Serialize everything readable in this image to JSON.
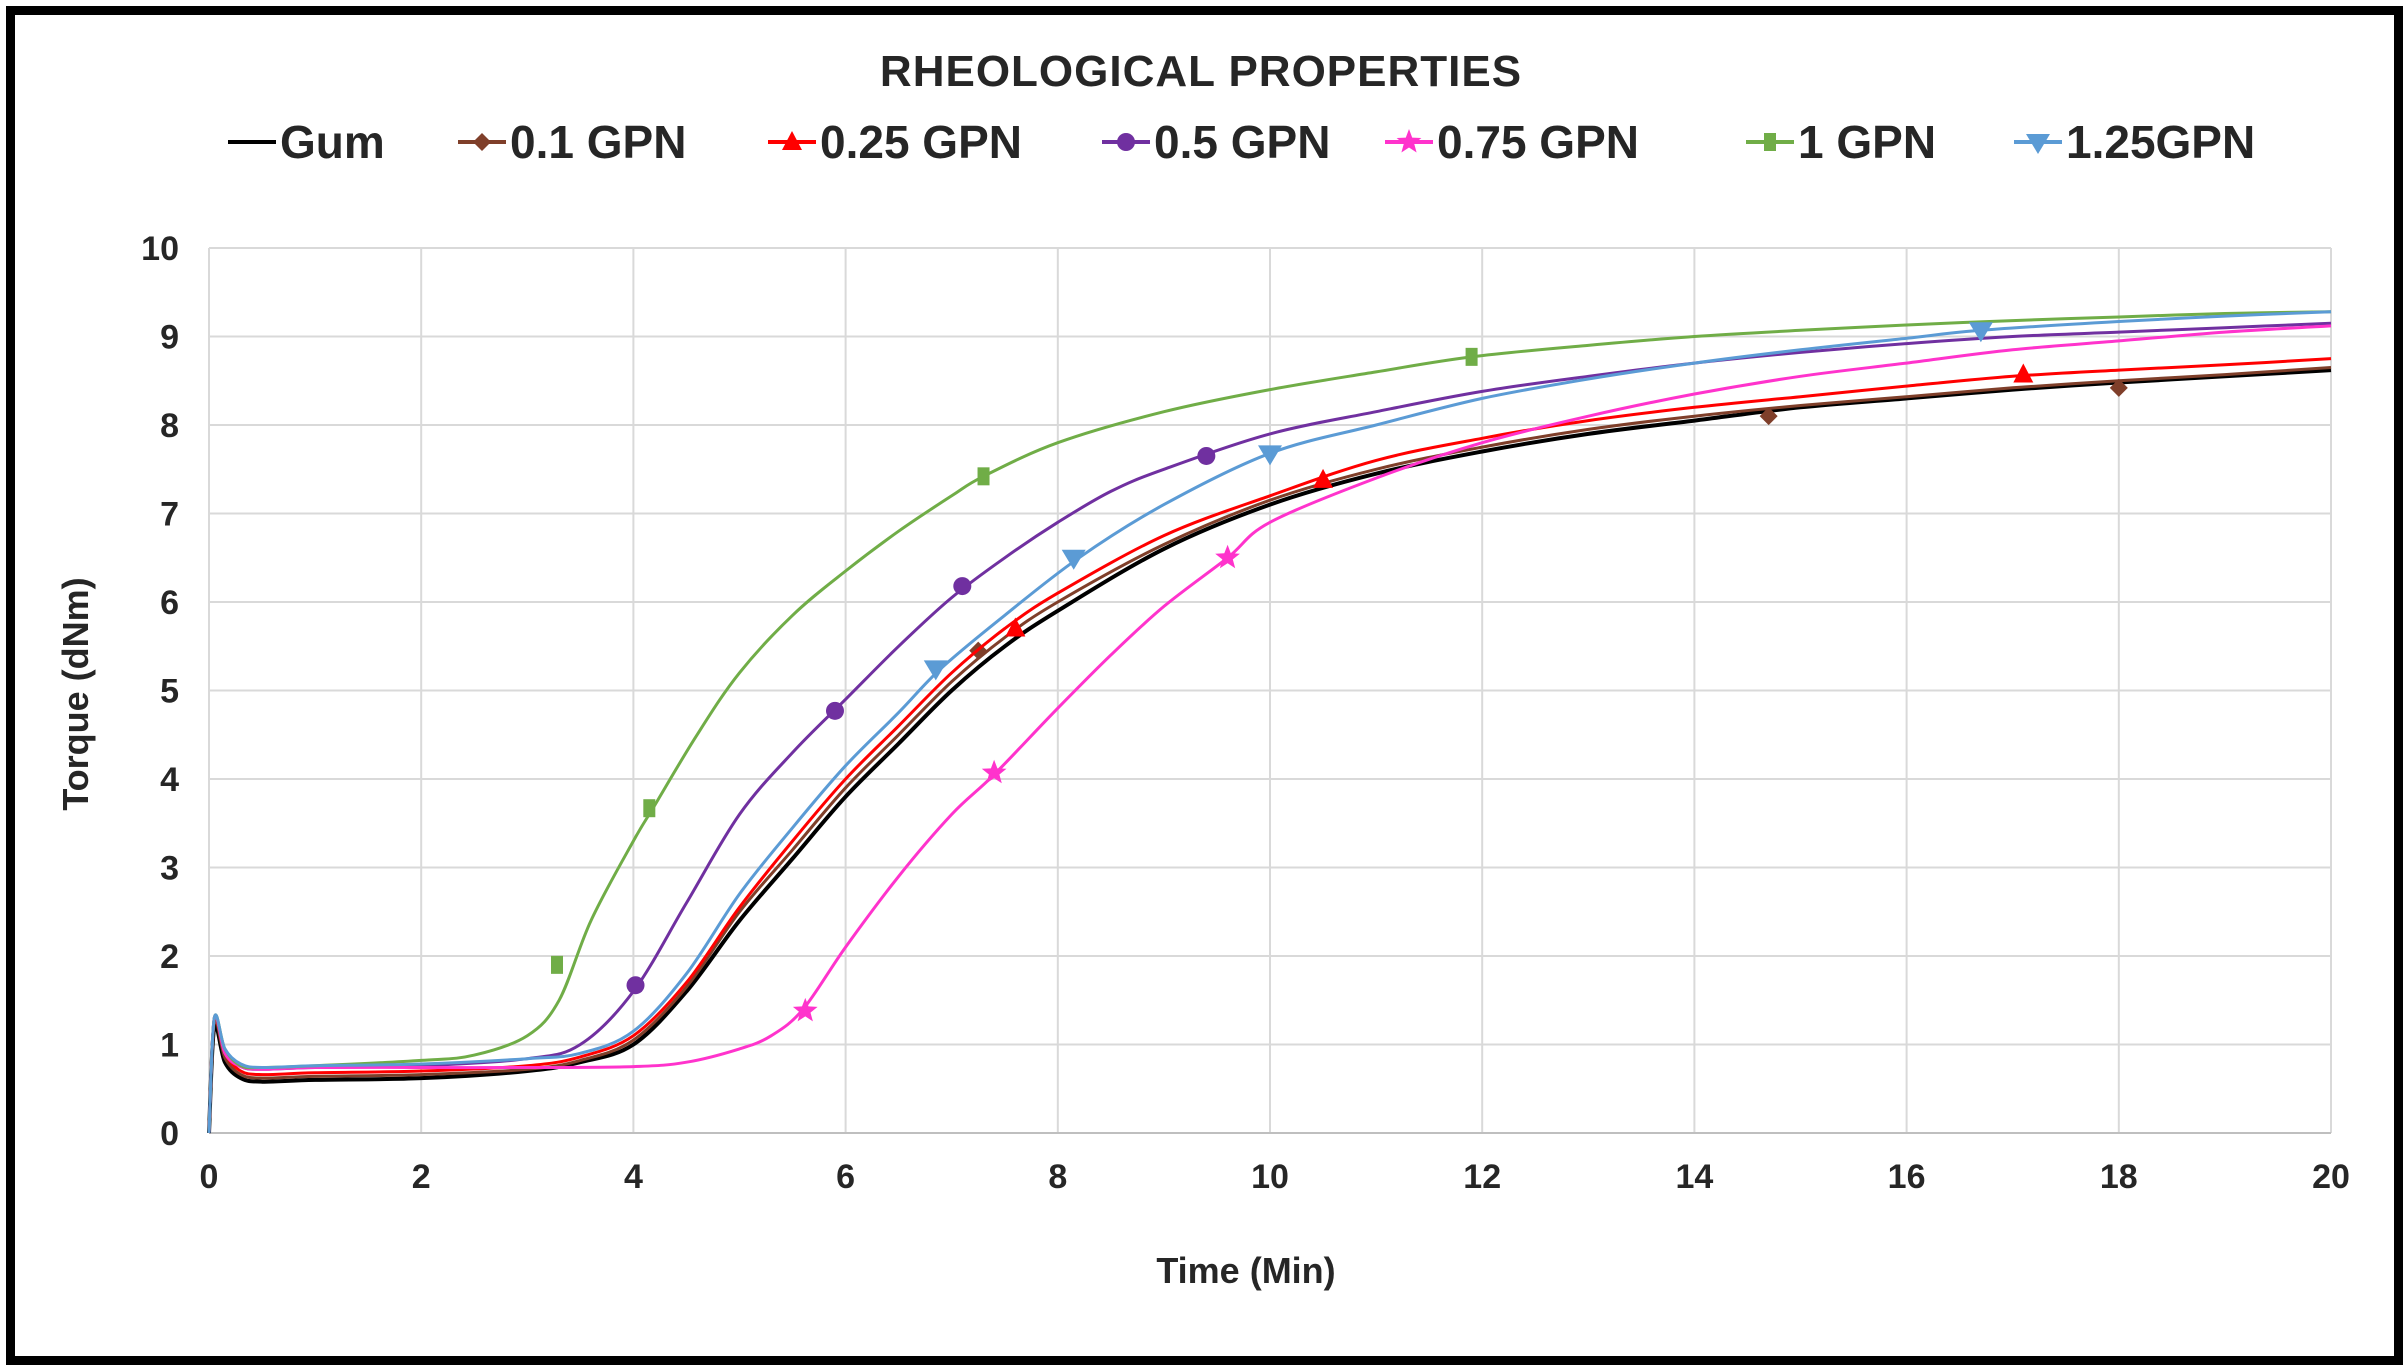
{
  "chart_data": {
    "type": "line",
    "title": "RHEOLOGICAL PROPERTIES",
    "xlabel": "Time (Min)",
    "ylabel": "Torque (dNm)",
    "xlim": [
      0,
      20
    ],
    "ylim": [
      0,
      10
    ],
    "x_ticks": [
      "0",
      "2",
      "4",
      "6",
      "8",
      "10",
      "12",
      "14",
      "16",
      "18",
      "20"
    ],
    "y_ticks": [
      "0",
      "1",
      "2",
      "3",
      "4",
      "5",
      "6",
      "7",
      "8",
      "9",
      "10"
    ],
    "grid": true,
    "legend_position": "top",
    "series": [
      {
        "name": "Gum",
        "color": "#000000",
        "marker": "none",
        "x": [
          0,
          0.05,
          0.15,
          0.3,
          0.5,
          1,
          2,
          3,
          3.5,
          4,
          4.5,
          5,
          5.5,
          6,
          6.5,
          7,
          7.5,
          8,
          9,
          10,
          11,
          12,
          13,
          14,
          15,
          16,
          17,
          18,
          19,
          20
        ],
        "y": [
          0,
          1.2,
          0.8,
          0.62,
          0.58,
          0.6,
          0.62,
          0.7,
          0.8,
          1.0,
          1.6,
          2.4,
          3.1,
          3.8,
          4.4,
          5.0,
          5.5,
          5.9,
          6.6,
          7.1,
          7.45,
          7.7,
          7.9,
          8.05,
          8.2,
          8.3,
          8.4,
          8.48,
          8.55,
          8.62
        ],
        "markers_x": [],
        "markers_y": []
      },
      {
        "name": "0.1 GPN",
        "color": "#7f3f2a",
        "marker": "diamond",
        "x": [
          0,
          0.05,
          0.15,
          0.3,
          0.5,
          1,
          2,
          3,
          3.5,
          4,
          4.5,
          5,
          5.5,
          6,
          6.5,
          7,
          7.5,
          8,
          9,
          10,
          11,
          12,
          13,
          14,
          15,
          16,
          17,
          18,
          19,
          20
        ],
        "y": [
          0,
          1.25,
          0.85,
          0.66,
          0.62,
          0.64,
          0.66,
          0.72,
          0.82,
          1.05,
          1.65,
          2.5,
          3.2,
          3.9,
          4.5,
          5.1,
          5.6,
          6.0,
          6.65,
          7.15,
          7.5,
          7.75,
          7.95,
          8.1,
          8.22,
          8.32,
          8.42,
          8.5,
          8.57,
          8.65
        ],
        "markers_x": [
          7.25,
          14.7,
          18
        ],
        "markers_y": [
          5.45,
          8.1,
          8.42
        ]
      },
      {
        "name": "0.25 GPN",
        "color": "#ff0000",
        "marker": "triangle",
        "x": [
          0,
          0.05,
          0.15,
          0.3,
          0.5,
          1,
          2,
          3,
          3.5,
          4,
          4.5,
          5,
          5.5,
          6,
          6.5,
          7,
          7.5,
          8,
          9,
          10,
          11,
          12,
          13,
          14,
          15,
          16,
          17,
          18,
          19,
          20
        ],
        "y": [
          0,
          1.28,
          0.9,
          0.7,
          0.66,
          0.68,
          0.7,
          0.76,
          0.86,
          1.1,
          1.7,
          2.55,
          3.3,
          4.0,
          4.6,
          5.2,
          5.7,
          6.1,
          6.75,
          7.2,
          7.6,
          7.85,
          8.05,
          8.2,
          8.32,
          8.44,
          8.55,
          8.62,
          8.68,
          8.75
        ],
        "markers_x": [
          7.6,
          10.5,
          17.1
        ],
        "markers_y": [
          5.7,
          7.38,
          8.57
        ]
      },
      {
        "name": "0.5 GPN",
        "color": "#7030a0",
        "marker": "circle",
        "x": [
          0,
          0.05,
          0.15,
          0.3,
          0.5,
          1,
          2,
          3,
          3.5,
          4,
          4.5,
          5,
          5.5,
          6,
          6.5,
          7,
          7.5,
          8,
          8.5,
          9,
          10,
          11,
          12,
          13,
          14,
          15,
          16,
          17,
          18,
          19,
          20
        ],
        "y": [
          0,
          1.3,
          0.92,
          0.75,
          0.72,
          0.74,
          0.76,
          0.84,
          1.0,
          1.6,
          2.6,
          3.6,
          4.3,
          4.9,
          5.5,
          6.05,
          6.5,
          6.9,
          7.25,
          7.5,
          7.9,
          8.15,
          8.38,
          8.55,
          8.7,
          8.82,
          8.92,
          9.0,
          9.05,
          9.1,
          9.15
        ],
        "markers_x": [
          4.02,
          5.9,
          7.1,
          9.4
        ],
        "markers_y": [
          1.67,
          4.77,
          6.18,
          7.65
        ]
      },
      {
        "name": "0.75 GPN",
        "color": "#ff33cc",
        "marker": "star",
        "x": [
          0,
          0.05,
          0.15,
          0.3,
          0.5,
          1,
          2,
          3,
          4,
          4.5,
          5,
          5.3,
          5.6,
          6,
          6.5,
          7,
          7.4,
          8,
          8.5,
          9,
          9.6,
          10,
          11,
          12,
          13,
          14,
          15,
          16,
          17,
          18,
          19,
          20
        ],
        "y": [
          0,
          1.3,
          0.9,
          0.75,
          0.72,
          0.74,
          0.74,
          0.74,
          0.75,
          0.8,
          0.95,
          1.1,
          1.4,
          2.1,
          2.9,
          3.6,
          4.05,
          4.8,
          5.4,
          5.95,
          6.5,
          6.9,
          7.4,
          7.8,
          8.1,
          8.35,
          8.55,
          8.7,
          8.85,
          8.95,
          9.05,
          9.12
        ],
        "markers_x": [
          5.62,
          7.4,
          9.6
        ],
        "markers_y": [
          1.38,
          4.07,
          6.5
        ]
      },
      {
        "name": "1 GPN",
        "color": "#70ad47",
        "marker": "square",
        "x": [
          0,
          0.05,
          0.15,
          0.3,
          0.5,
          1,
          2,
          2.5,
          3,
          3.3,
          3.6,
          4,
          4.2,
          4.6,
          5,
          5.5,
          6,
          6.5,
          7,
          7.3,
          8,
          9,
          10,
          11,
          11.9,
          13,
          14,
          15,
          16,
          17,
          18,
          19,
          20
        ],
        "y": [
          0,
          1.3,
          0.95,
          0.76,
          0.74,
          0.76,
          0.82,
          0.88,
          1.1,
          1.5,
          2.4,
          3.3,
          3.7,
          4.5,
          5.2,
          5.85,
          6.35,
          6.8,
          7.2,
          7.42,
          7.8,
          8.15,
          8.4,
          8.6,
          8.77,
          8.9,
          9.0,
          9.07,
          9.13,
          9.18,
          9.22,
          9.26,
          9.28
        ],
        "markers_x": [
          3.28,
          4.15,
          7.3,
          11.9
        ],
        "markers_y": [
          1.9,
          3.67,
          7.42,
          8.77
        ]
      },
      {
        "name": "1.25GPN",
        "color": "#5b9bd5",
        "marker": "triangle-down",
        "x": [
          0,
          0.05,
          0.15,
          0.3,
          0.5,
          1,
          2,
          3,
          3.5,
          4,
          4.5,
          5,
          5.5,
          6,
          6.5,
          6.9,
          7.5,
          8.2,
          9,
          10,
          11,
          12,
          13,
          14,
          15,
          16,
          16.7,
          18,
          19,
          20
        ],
        "y": [
          0,
          1.3,
          0.95,
          0.78,
          0.74,
          0.76,
          0.78,
          0.84,
          0.9,
          1.15,
          1.8,
          2.7,
          3.45,
          4.15,
          4.75,
          5.25,
          5.85,
          6.5,
          7.1,
          7.68,
          8.0,
          8.3,
          8.52,
          8.7,
          8.85,
          8.98,
          9.07,
          9.17,
          9.23,
          9.28
        ],
        "markers_x": [
          6.85,
          8.15,
          10.0,
          16.7
        ],
        "markers_y": [
          5.25,
          6.5,
          7.68,
          9.07
        ]
      }
    ]
  }
}
